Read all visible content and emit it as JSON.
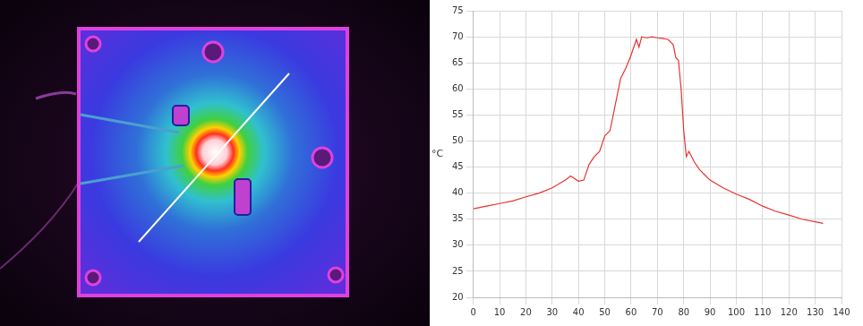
{
  "chart_data": {
    "type": "line",
    "ylabel": "°C",
    "x": [
      0,
      5,
      10,
      15,
      20,
      25,
      30,
      35,
      37,
      40,
      42,
      44,
      46,
      48,
      50,
      52,
      54,
      56,
      58,
      60,
      62,
      63,
      64,
      66,
      68,
      70,
      72,
      74,
      76,
      77,
      78,
      79,
      80,
      81,
      82,
      84,
      86,
      88,
      90,
      95,
      100,
      105,
      110,
      115,
      120,
      125,
      130,
      133
    ],
    "values": [
      37,
      37.5,
      38,
      38.5,
      39.3,
      40,
      41,
      42.5,
      43.3,
      42.3,
      42.5,
      45.5,
      47,
      48,
      51,
      52,
      57,
      62,
      64,
      66.5,
      69.5,
      68,
      70,
      69.8,
      70,
      69.8,
      69.7,
      69.5,
      68.5,
      66,
      65.5,
      60,
      52,
      47,
      48,
      46,
      44.5,
      43.5,
      42.5,
      41,
      39.8,
      38.8,
      37.5,
      36.5,
      35.8,
      35,
      34.5,
      34.2
    ],
    "color": "#e8322f",
    "xlim": [
      0,
      140
    ],
    "xticks": [
      0,
      10,
      20,
      30,
      40,
      50,
      60,
      70,
      80,
      90,
      100,
      110,
      120,
      130,
      140
    ],
    "ylim": [
      20,
      75
    ],
    "yticks": [
      20,
      25,
      30,
      35,
      40,
      45,
      50,
      55,
      60,
      65,
      70,
      75
    ],
    "grid": true
  }
}
